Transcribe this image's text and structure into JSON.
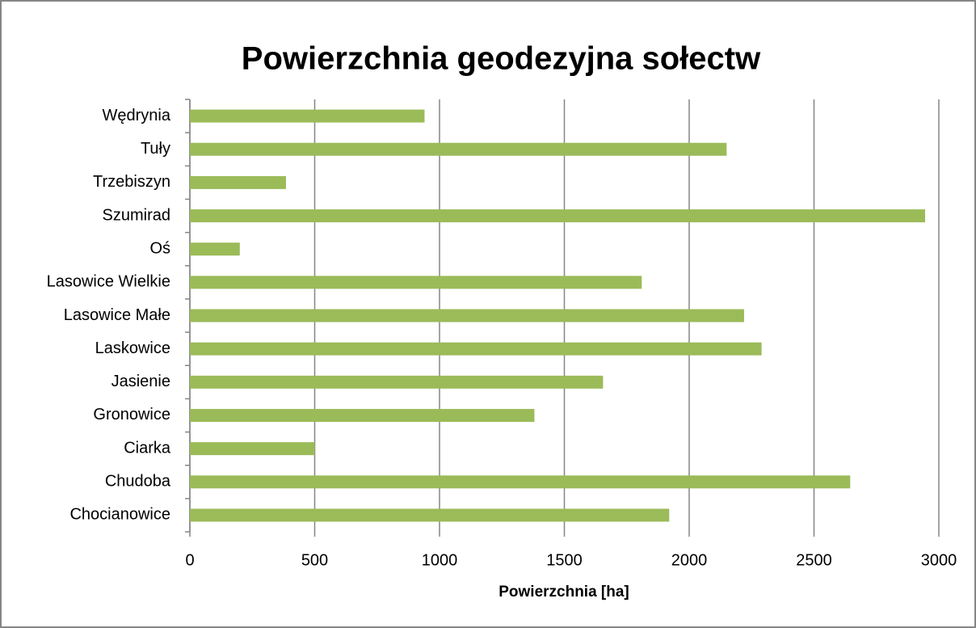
{
  "chart_data": {
    "type": "barh",
    "title": "Powierzchnia geodezyjna sołectw",
    "xlabel": "Powierzchnia [ha]",
    "categories": [
      "Wędrynia",
      "Tuły",
      "Trzebiszyn",
      "Szumirad",
      "Oś",
      "Lasowice Wielkie",
      "Lasowice Małe",
      "Laskowice",
      "Jasienie",
      "Gronowice",
      "Ciarka",
      "Chudoba",
      "Chocianowice"
    ],
    "values": [
      940,
      2150,
      385,
      2945,
      200,
      1810,
      2220,
      2290,
      1655,
      1380,
      500,
      2645,
      1920
    ],
    "color": "#9bbb59",
    "xlim": [
      0,
      3000
    ],
    "xticks": [
      0,
      500,
      1000,
      1500,
      2000,
      2500,
      3000
    ],
    "grid": true
  }
}
